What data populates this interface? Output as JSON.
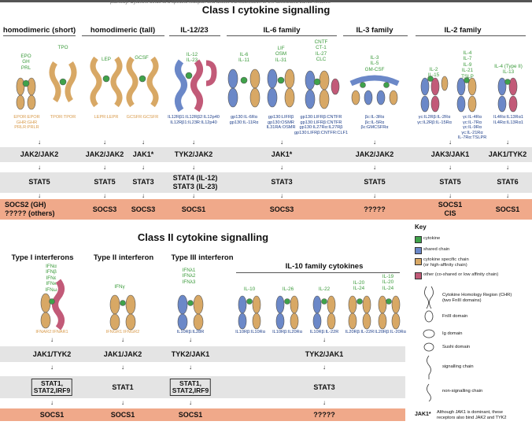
{
  "header_fragment": "pathway. Cytokine binds to a specific receptor and allows transactivation of the associated Janus Kinases",
  "class1": {
    "title": "Class I cytokine signalling",
    "families": [
      "homodimeric (short)",
      "homodimeric (tall)",
      "IL-12/23",
      "IL-6 family",
      "IL-3 family",
      "IL-2 family"
    ],
    "cytokines": [
      "EPO\nGH\nPRL",
      "TPO",
      "LEP",
      "GCSF",
      "IL-12\nIL-23",
      "IL-6\nIL-11",
      "LIF\nOSM\nIL-31",
      "CNTF\nCT-1\nIL-27\nCLC",
      "IL-3\nIL-5\nGM-CSF",
      "IL-2\nIL-15",
      "IL-4\nIL-7\nIL-9\nIL-21\nTSLP",
      "IL-4 (Type II)\nIL-13"
    ],
    "receptors": [
      "EPOR:EPOR\nGHR:GHR\nPRLR:PRLR",
      "TPOR:TPOR",
      "LEPR:LEPR",
      "GCSFR:GCSFR",
      "IL12Rβ1:IL12Rβ2:IL12p40\nIL12Rβ1:IL23R:IL12p40",
      "gp130:IL-6Rα\ngp130:IL-11Rα",
      "gp130:LIFRβ\ngp130:OSMR\nIL31RA:OSMR",
      "gp130:LIFRβ:CNTFR\ngp130:LIFRβ:CNTFR\ngp130:IL27Rα:IL27Rβ\ngp130:LIFRβ:CNTFR:CLF1",
      "βc:IL-3Rα\nβc:IL-5Rα\nβc:GMCSFRα",
      "γc:IL2Rβ:IL-2Rα\nγc:IL2Rβ:IL-15Rα",
      "γc:IL-4Rα\nγc:IL-7Rα\nγc:IL-9Rα\nγc:IL-21Rα\nIL-7Rα:TSLPR",
      "IL4Rα:IL13Rα1\nIL4Rα:IL13Rα1"
    ],
    "jaks": [
      "JAK2/JAK2",
      "JAK2/JAK2",
      "JAK1*",
      "TYK2/JAK2",
      "JAK1*",
      "JAK2/JAK2",
      "JAK3/JAK1",
      "JAK1/TYK2"
    ],
    "stats": [
      "STAT5",
      "STAT5",
      "STAT3",
      "STAT4 (IL-12)\nSTAT3 (IL-23)",
      "STAT3",
      "STAT5",
      "STAT5",
      "STAT6"
    ],
    "socs": [
      "SOCS2 (GH)\n????? (others)",
      "SOCS3",
      "SOCS3",
      "SOCS1",
      "SOCS3",
      "?????",
      "SOCS1\nCIS",
      "SOCS1"
    ]
  },
  "class2": {
    "title": "Class II cytokine signalling",
    "families": [
      "Type I interferons",
      "Type II interferon",
      "Type III interferon",
      "IL-10 family cytokines"
    ],
    "cytokines": [
      "IFNα\nIFNβ\nIFNε\nIFNκ\nIFNω",
      "IFNγ",
      "IFNλ1\nIFNλ2\nIFNλ3",
      "IL-10",
      "IL-26",
      "IL-22",
      "IL-20\nIL-24",
      "IL-19\nIL-20\nIL-24"
    ],
    "receptors": [
      "IFNAR2:IFNAR1",
      "IFNGR1:IFNGR2",
      "IL10Rβ:IL28R",
      "IL10Rβ:IL10Rα",
      "IL10Rβ:IL20Rα",
      "IL10Rβ:IL-22R",
      "IL20Rβ:IL-22R",
      "IL20Rβ:IL-20Rα"
    ],
    "jaks": [
      "JAK1/TYK2",
      "JAK1/JAK2",
      "TYK2/JAK1",
      "TYK2/JAK1"
    ],
    "stats": [
      "STAT1,\nSTAT2,IRF9",
      "STAT1",
      "STAT1,\nSTAT2,IRF9",
      "STAT3"
    ],
    "socs": [
      "SOCS1",
      "SOCS1",
      "SOCS1",
      "?????"
    ]
  },
  "key": {
    "title": "Key",
    "items": [
      "cytokine",
      "shared chain",
      "cytokine specific chain\n(or high-affinity chain)",
      "other (co-shared or low affinity chain)"
    ],
    "domains": [
      "Cytokine Homology Region (CHR)\n(two FnIII domains)",
      "FnIII domain",
      "Ig domain",
      "Sushi domain",
      "signalling chain",
      "non-signalling chain"
    ],
    "jak_note_label": "JAK1*",
    "jak_note": "Although JAK1 is dominant, these\nreceptors also bind JAK2 and TYK2"
  },
  "colors": {
    "cytokine": "#3fa24a",
    "shared": "#6b88c8",
    "specific": "#d8a865",
    "other": "#c25a78",
    "band_grey": "#e4e4e4",
    "band_salmon": "#f0a98a"
  }
}
